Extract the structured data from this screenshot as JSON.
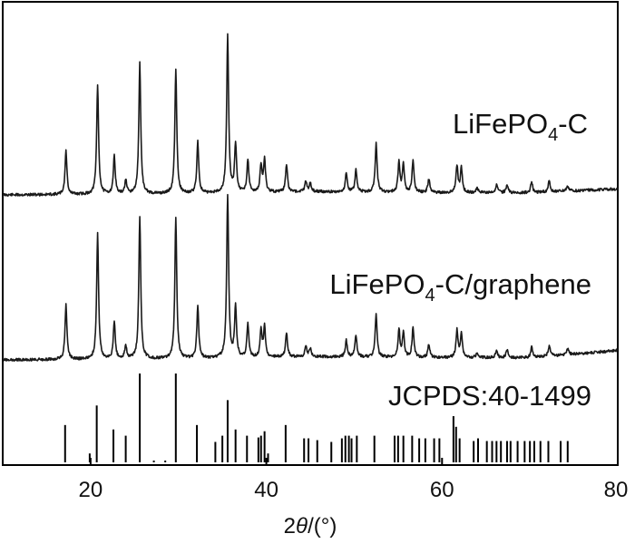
{
  "chart_data": {
    "type": "line",
    "title": "",
    "xlabel": {
      "prefix": "2",
      "italic": "θ",
      "suffix": "/(°)"
    },
    "ylabel": "",
    "xlim": [
      10,
      80
    ],
    "x_ticks": [
      20,
      40,
      60,
      80
    ],
    "grid": false,
    "legend": "none",
    "series": [
      {
        "name": "LiFePO4-C",
        "name_base": "LiFePO",
        "name_sub": "4",
        "name_tail": "-C",
        "baseline": [
          [
            10,
            0.0
          ],
          [
            30,
            0.004
          ],
          [
            45,
            0.012
          ],
          [
            60,
            0.008
          ],
          [
            70,
            0.008
          ],
          [
            80,
            0.022
          ]
        ],
        "peaks": [
          [
            17.2,
            0.16
          ],
          [
            20.8,
            0.4
          ],
          [
            22.7,
            0.14
          ],
          [
            24.0,
            0.05
          ],
          [
            25.6,
            0.48
          ],
          [
            29.7,
            0.46
          ],
          [
            32.2,
            0.19
          ],
          [
            35.6,
            0.58
          ],
          [
            36.5,
            0.18
          ],
          [
            37.9,
            0.12
          ],
          [
            39.4,
            0.1
          ],
          [
            39.8,
            0.12
          ],
          [
            42.3,
            0.1
          ],
          [
            44.5,
            0.04
          ],
          [
            45.0,
            0.03
          ],
          [
            49.1,
            0.07
          ],
          [
            50.2,
            0.08
          ],
          [
            52.5,
            0.18
          ],
          [
            55.1,
            0.11
          ],
          [
            55.6,
            0.1
          ],
          [
            56.7,
            0.12
          ],
          [
            58.5,
            0.05
          ],
          [
            61.7,
            0.1
          ],
          [
            62.2,
            0.09
          ],
          [
            64.0,
            0.02
          ],
          [
            66.2,
            0.03
          ],
          [
            67.4,
            0.03
          ],
          [
            70.2,
            0.04
          ],
          [
            72.2,
            0.04
          ],
          [
            74.3,
            0.02
          ]
        ]
      },
      {
        "name": "LiFePO4-C/graphene",
        "name_base": "LiFePO",
        "name_sub": "4",
        "name_tail": "-C/graphene",
        "baseline": [
          [
            10,
            0.0
          ],
          [
            30,
            0.004
          ],
          [
            45,
            0.012
          ],
          [
            60,
            0.008
          ],
          [
            70,
            0.008
          ],
          [
            80,
            0.035
          ]
        ],
        "peaks": [
          [
            17.2,
            0.2
          ],
          [
            20.8,
            0.46
          ],
          [
            22.7,
            0.14
          ],
          [
            24.0,
            0.05
          ],
          [
            25.6,
            0.52
          ],
          [
            29.7,
            0.52
          ],
          [
            32.2,
            0.19
          ],
          [
            35.6,
            0.6
          ],
          [
            36.5,
            0.19
          ],
          [
            37.9,
            0.12
          ],
          [
            39.4,
            0.1
          ],
          [
            39.8,
            0.11
          ],
          [
            42.3,
            0.09
          ],
          [
            44.5,
            0.04
          ],
          [
            45.0,
            0.03
          ],
          [
            49.1,
            0.06
          ],
          [
            50.2,
            0.08
          ],
          [
            52.5,
            0.16
          ],
          [
            55.1,
            0.1
          ],
          [
            55.6,
            0.09
          ],
          [
            56.7,
            0.11
          ],
          [
            58.5,
            0.05
          ],
          [
            61.7,
            0.1
          ],
          [
            62.2,
            0.09
          ],
          [
            64.0,
            0.02
          ],
          [
            66.2,
            0.03
          ],
          [
            67.4,
            0.03
          ],
          [
            70.2,
            0.04
          ],
          [
            72.2,
            0.04
          ],
          [
            74.3,
            0.02
          ]
        ]
      }
    ],
    "reference": {
      "name": "JCPDS:40-1499",
      "lines": [
        [
          17.1,
          42
        ],
        [
          19.9,
          10
        ],
        [
          20.7,
          64
        ],
        [
          22.6,
          37
        ],
        [
          24.0,
          30
        ],
        [
          25.6,
          100
        ],
        [
          27.2,
          2
        ],
        [
          28.5,
          2
        ],
        [
          29.7,
          100
        ],
        [
          32.1,
          42
        ],
        [
          34.2,
          23
        ],
        [
          35.0,
          30
        ],
        [
          35.6,
          70
        ],
        [
          36.5,
          37
        ],
        [
          37.8,
          30
        ],
        [
          39.1,
          28
        ],
        [
          39.4,
          30
        ],
        [
          39.8,
          35
        ],
        [
          40.2,
          10
        ],
        [
          42.2,
          42
        ],
        [
          44.3,
          27
        ],
        [
          44.8,
          27
        ],
        [
          45.8,
          25
        ],
        [
          47.4,
          23
        ],
        [
          48.6,
          27
        ],
        [
          49.0,
          30
        ],
        [
          49.4,
          30
        ],
        [
          49.7,
          27
        ],
        [
          50.3,
          30
        ],
        [
          52.3,
          30
        ],
        [
          54.6,
          30
        ],
        [
          55.0,
          30
        ],
        [
          55.6,
          30
        ],
        [
          56.6,
          30
        ],
        [
          57.4,
          27
        ],
        [
          58.1,
          27
        ],
        [
          59.1,
          27
        ],
        [
          59.7,
          27
        ],
        [
          61.3,
          52
        ],
        [
          61.6,
          40
        ],
        [
          62.0,
          27
        ],
        [
          63.6,
          24
        ],
        [
          64.1,
          27
        ],
        [
          65.1,
          24
        ],
        [
          65.7,
          24
        ],
        [
          66.2,
          24
        ],
        [
          66.7,
          24
        ],
        [
          67.4,
          24
        ],
        [
          67.8,
          24
        ],
        [
          68.6,
          24
        ],
        [
          69.4,
          24
        ],
        [
          70.0,
          24
        ],
        [
          70.5,
          24
        ],
        [
          71.2,
          24
        ],
        [
          72.1,
          24
        ],
        [
          73.5,
          24
        ],
        [
          74.3,
          24
        ]
      ]
    }
  }
}
